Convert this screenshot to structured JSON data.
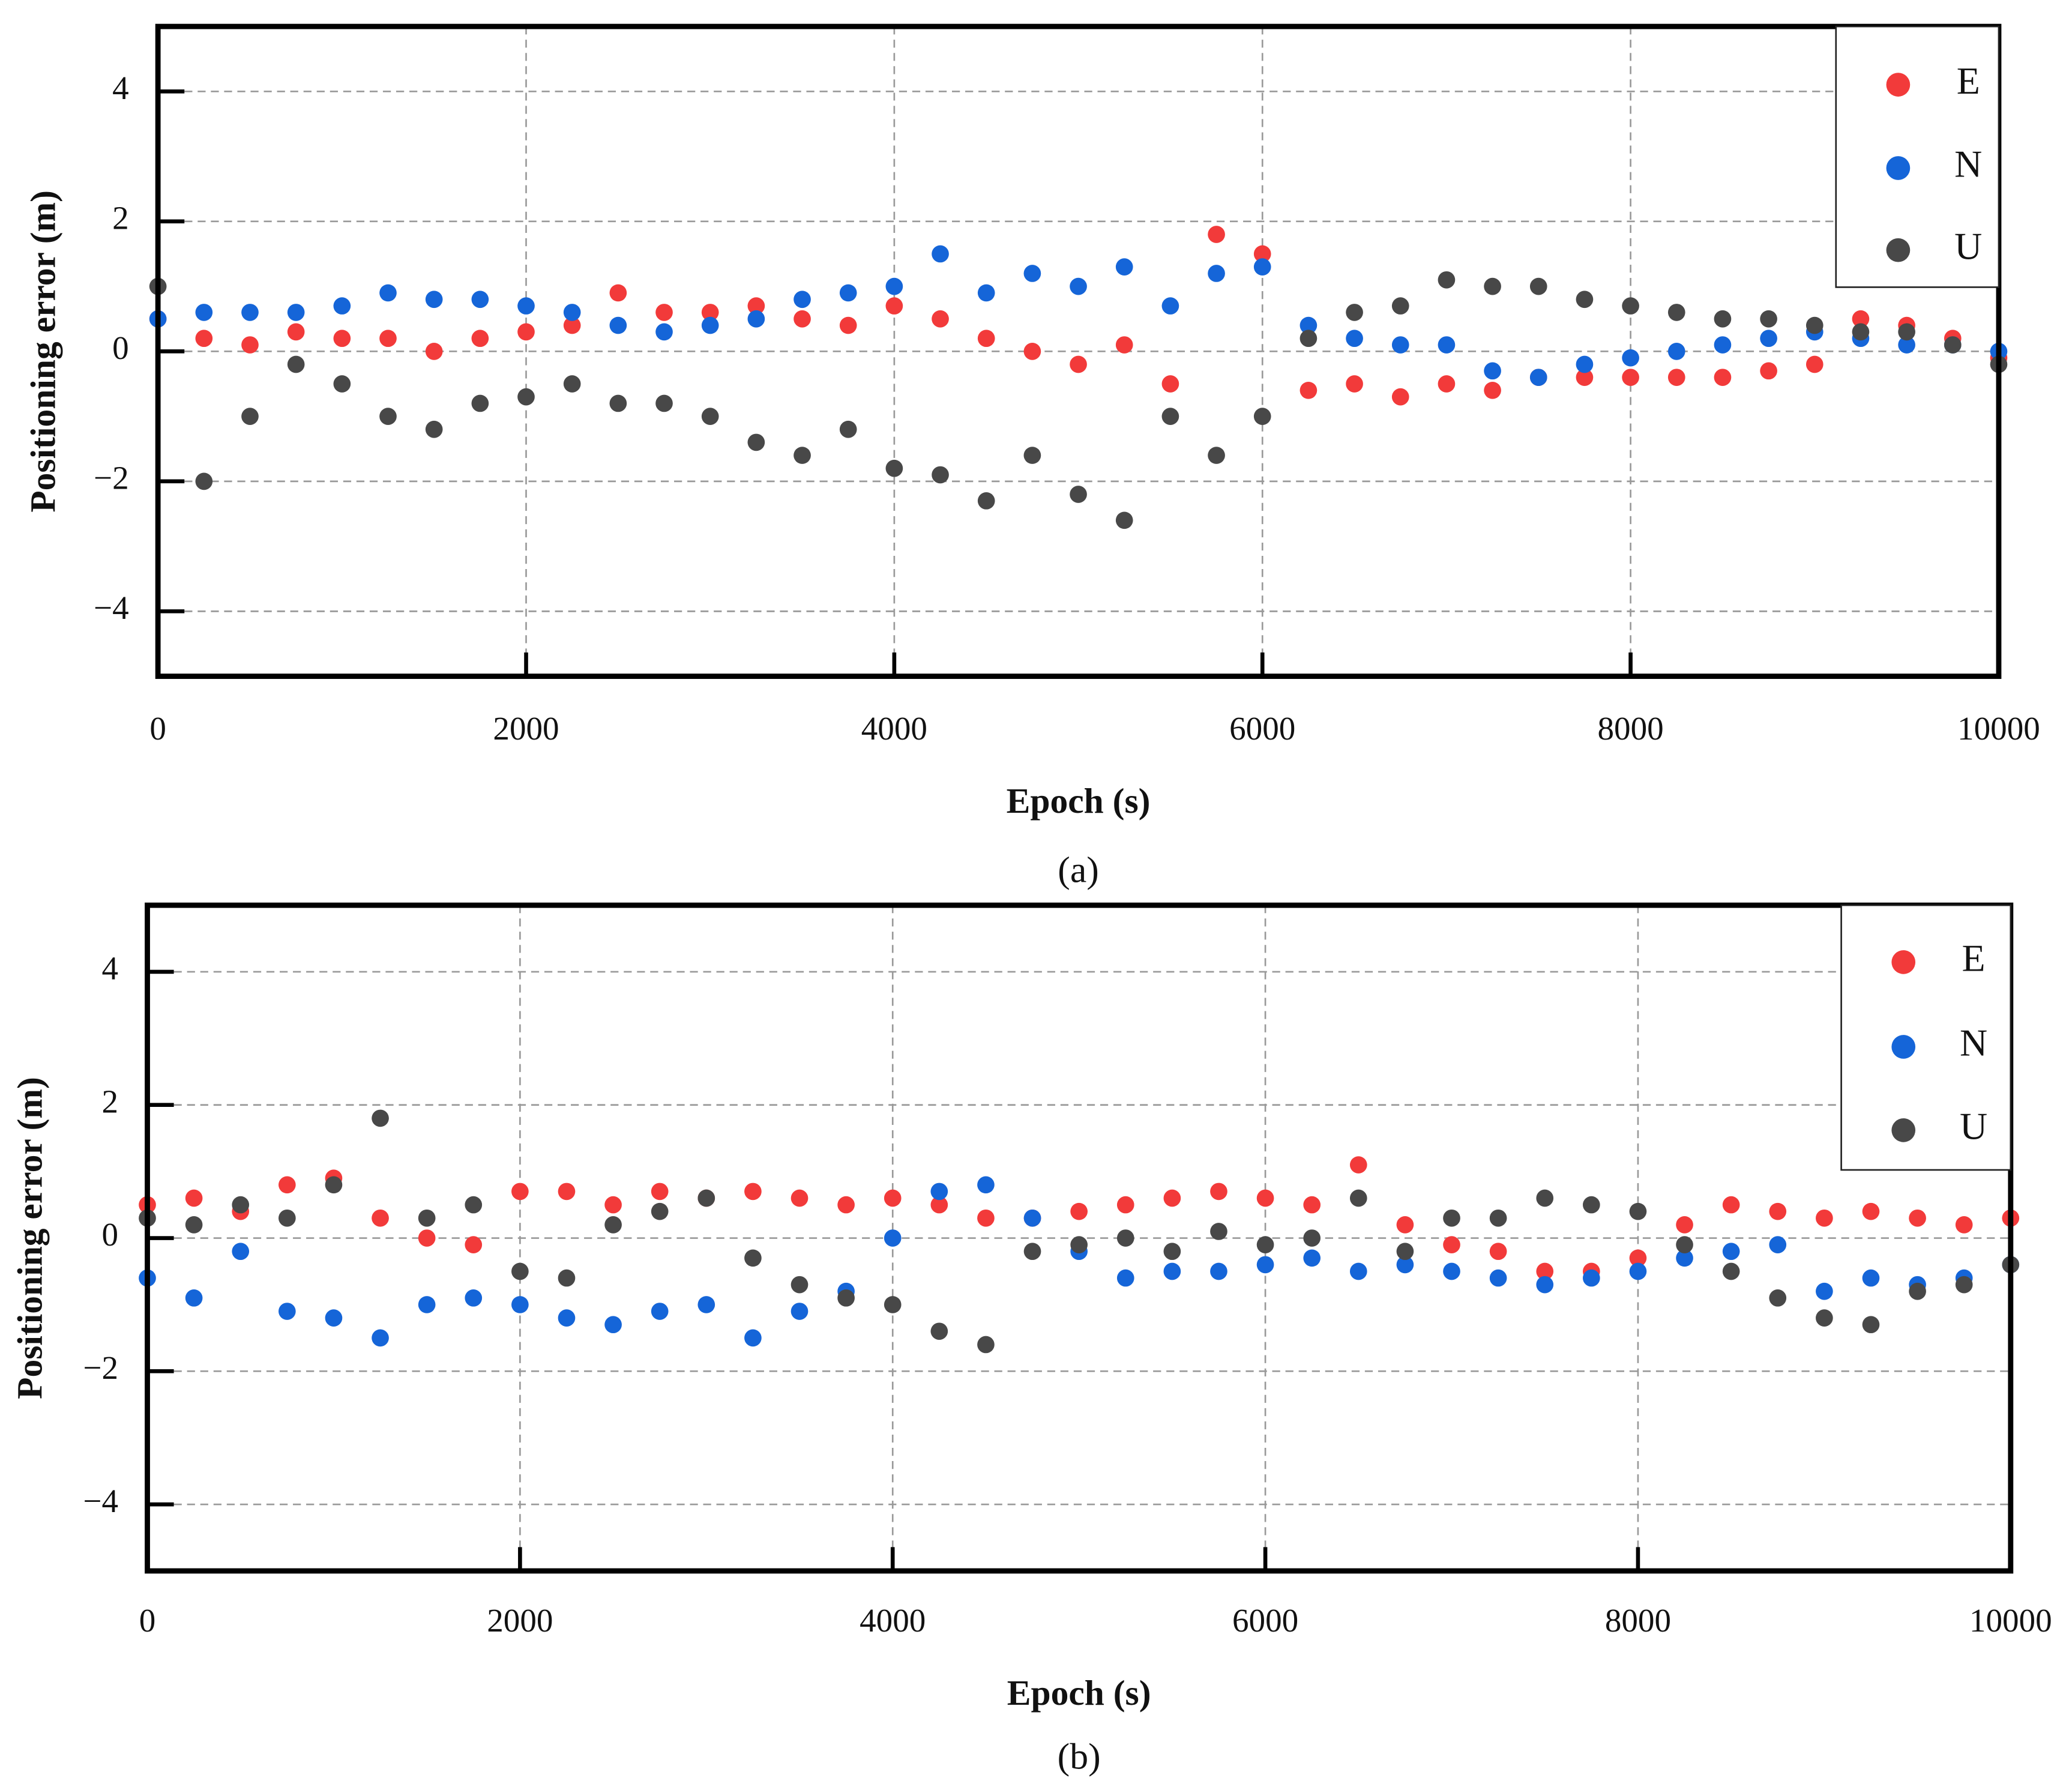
{
  "chart_data": [
    {
      "type": "scatter",
      "caption": "(a)",
      "x_label": "Epoch (s)",
      "y_label": "Positioning error (m)",
      "x": [
        0,
        250,
        500,
        750,
        1000,
        1250,
        1500,
        1750,
        2000,
        2250,
        2500,
        2750,
        3000,
        3250,
        3500,
        3750,
        4000,
        4250,
        4500,
        4750,
        5000,
        5250,
        5500,
        5750,
        6000,
        6250,
        6500,
        6750,
        7000,
        7250,
        7500,
        7750,
        8000,
        8250,
        8500,
        8750,
        9000,
        9250,
        9500,
        9750,
        10000
      ],
      "series": [
        {
          "name": "E",
          "color": "#f23a3a",
          "values": [
            0.5,
            0.2,
            0.1,
            0.3,
            0.2,
            0.2,
            0.0,
            0.2,
            0.3,
            0.4,
            0.9,
            0.6,
            0.6,
            0.7,
            0.5,
            0.4,
            0.7,
            0.5,
            0.2,
            0.0,
            -0.2,
            0.1,
            -0.5,
            1.8,
            1.5,
            -0.6,
            -0.5,
            -0.7,
            -0.5,
            -0.6,
            -0.4,
            -0.4,
            -0.4,
            -0.4,
            -0.4,
            -0.3,
            -0.2,
            0.5,
            0.4,
            0.2,
            -0.1
          ]
        },
        {
          "name": "N",
          "color": "#1565d8",
          "values": [
            0.5,
            0.6,
            0.6,
            0.6,
            0.7,
            0.9,
            0.8,
            0.8,
            0.7,
            0.6,
            0.4,
            0.3,
            0.4,
            0.5,
            0.8,
            0.9,
            1.0,
            1.5,
            0.9,
            1.2,
            1.0,
            1.3,
            0.7,
            1.2,
            1.3,
            0.4,
            0.2,
            0.1,
            0.1,
            -0.3,
            -0.4,
            -0.2,
            -0.1,
            0.0,
            0.1,
            0.2,
            0.3,
            0.2,
            0.1,
            0.1,
            0.0
          ]
        },
        {
          "name": "U",
          "color": "#484848",
          "values": [
            1.0,
            -2.0,
            -1.0,
            -0.2,
            -0.5,
            -1.0,
            -1.2,
            -0.8,
            -0.7,
            -0.5,
            -0.8,
            -0.8,
            -1.0,
            -1.4,
            -1.6,
            -1.2,
            -1.8,
            -1.9,
            -2.3,
            -1.6,
            -2.2,
            -2.6,
            -1.0,
            -1.6,
            -1.0,
            0.2,
            0.6,
            0.7,
            1.1,
            1.0,
            1.0,
            0.8,
            0.7,
            0.6,
            0.5,
            0.5,
            0.4,
            0.3,
            0.3,
            0.1,
            -0.2
          ]
        }
      ],
      "xlim": [
        0,
        10000
      ],
      "xticks": [
        0,
        2000,
        4000,
        6000,
        8000,
        10000
      ],
      "ylim": [
        -5,
        5
      ],
      "yticks": [
        {
          "value": -4,
          "label": "−4"
        },
        {
          "value": -2,
          "label": "−2"
        },
        0,
        2,
        4
      ],
      "grid": true,
      "legend": "upper right"
    },
    {
      "type": "scatter",
      "caption": "(b)",
      "x_label": "Epoch (s)",
      "y_label": "Positioning error (m)",
      "x": [
        0,
        250,
        500,
        750,
        1000,
        1250,
        1500,
        1750,
        2000,
        2250,
        2500,
        2750,
        3000,
        3250,
        3500,
        3750,
        4000,
        4250,
        4500,
        4750,
        5000,
        5250,
        5500,
        5750,
        6000,
        6250,
        6500,
        6750,
        7000,
        7250,
        7500,
        7750,
        8000,
        8250,
        8500,
        8750,
        9000,
        9250,
        9500,
        9750,
        10000
      ],
      "series": [
        {
          "name": "E",
          "color": "#f23a3a",
          "values": [
            0.5,
            0.6,
            0.4,
            0.8,
            0.9,
            0.3,
            0.0,
            -0.1,
            0.7,
            0.7,
            0.5,
            0.7,
            0.6,
            0.7,
            0.6,
            0.5,
            0.6,
            0.5,
            0.3,
            0.3,
            0.4,
            0.5,
            0.6,
            0.7,
            0.6,
            0.5,
            1.1,
            0.2,
            -0.1,
            -0.2,
            -0.5,
            -0.5,
            -0.3,
            0.2,
            0.5,
            0.4,
            0.3,
            0.4,
            0.3,
            0.2,
            0.3
          ]
        },
        {
          "name": "N",
          "color": "#1565d8",
          "values": [
            -0.6,
            -0.9,
            -0.2,
            -1.1,
            -1.2,
            -1.5,
            -1.0,
            -0.9,
            -1.0,
            -1.2,
            -1.3,
            -1.1,
            -1.0,
            -1.5,
            -1.1,
            -0.8,
            0.0,
            0.7,
            0.8,
            0.3,
            -0.2,
            -0.6,
            -0.5,
            -0.5,
            -0.4,
            -0.3,
            -0.5,
            -0.4,
            -0.5,
            -0.6,
            -0.7,
            -0.6,
            -0.5,
            -0.3,
            -0.2,
            -0.1,
            -0.8,
            -0.6,
            -0.7,
            -0.6,
            -0.4
          ]
        },
        {
          "name": "U",
          "color": "#484848",
          "values": [
            0.3,
            0.2,
            0.5,
            0.3,
            0.8,
            1.8,
            0.3,
            0.5,
            -0.5,
            -0.6,
            0.2,
            0.4,
            0.6,
            -0.3,
            -0.7,
            -0.9,
            -1.0,
            -1.4,
            -1.6,
            -0.2,
            -0.1,
            0.0,
            -0.2,
            0.1,
            -0.1,
            0.0,
            0.6,
            -0.2,
            0.3,
            0.3,
            0.6,
            0.5,
            0.4,
            -0.1,
            -0.5,
            -0.9,
            -1.2,
            -1.3,
            -0.8,
            -0.7,
            -0.4
          ]
        }
      ],
      "xlim": [
        0,
        10000
      ],
      "xticks": [
        0,
        2000,
        4000,
        6000,
        8000,
        10000
      ],
      "ylim": [
        -5,
        5
      ],
      "yticks": [
        {
          "value": -4,
          "label": "−4"
        },
        {
          "value": -2,
          "label": "−2"
        },
        0,
        2,
        4
      ],
      "grid": true,
      "legend": "upper right"
    }
  ]
}
